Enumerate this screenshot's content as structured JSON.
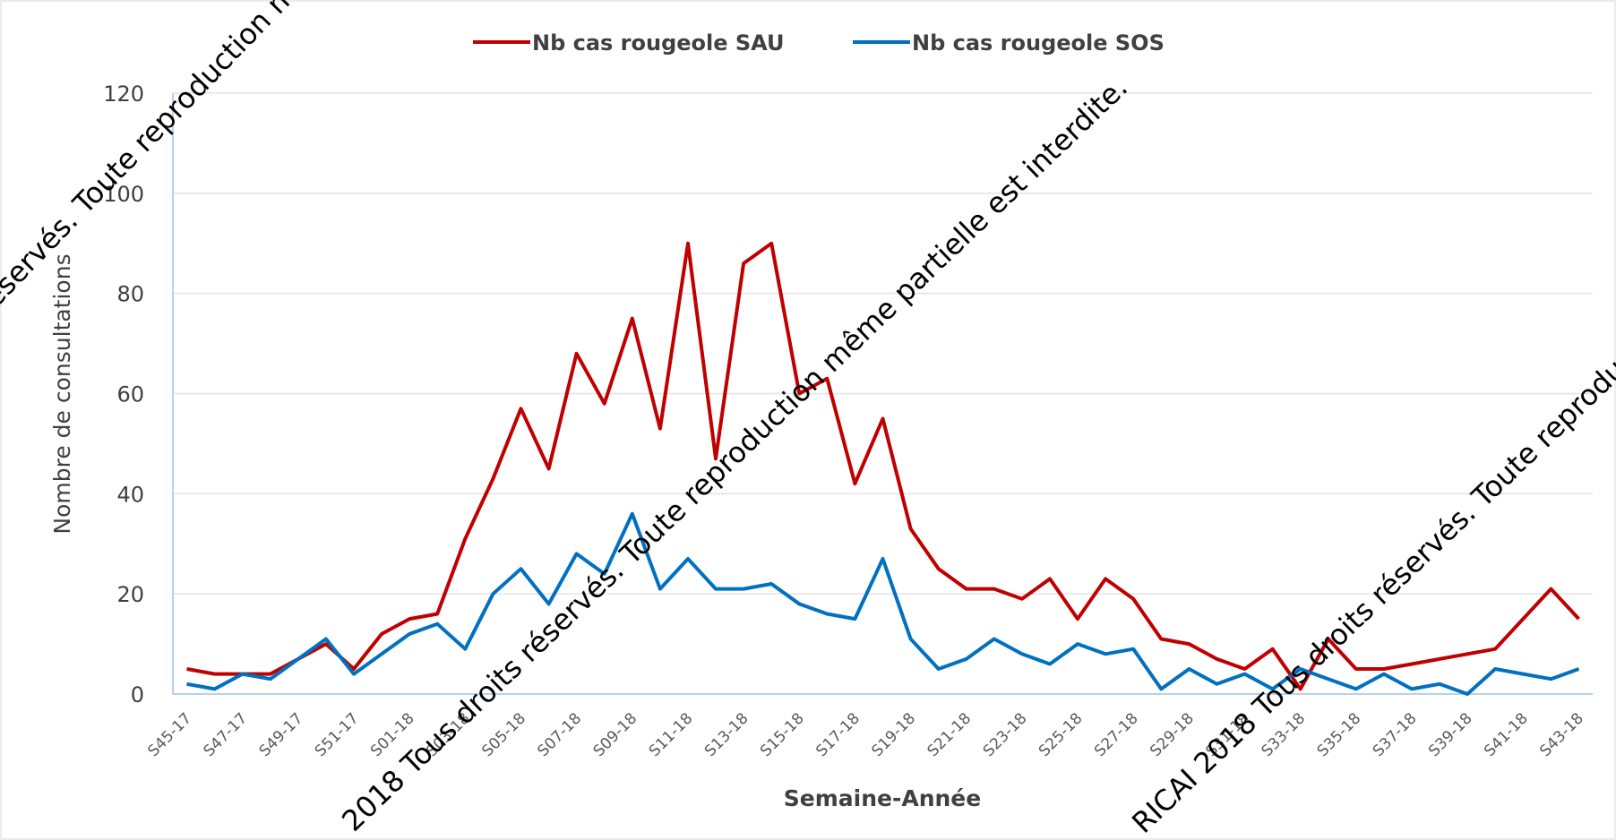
{
  "chart_data": {
    "type": "line",
    "y_label": "Nombre de consultations",
    "x_label": "Semaine-Année",
    "categories": [
      "S45-17",
      null,
      "S47-17",
      null,
      "S49-17",
      null,
      "S51-17",
      null,
      "S01-18",
      null,
      "S03-18",
      null,
      "S05-18",
      null,
      "S07-18",
      null,
      "S09-18",
      null,
      "S11-18",
      null,
      "S13-18",
      null,
      "S15-18",
      null,
      "S17-18",
      null,
      "S19-18",
      null,
      "S21-18",
      null,
      "S23-18",
      null,
      "S25-18",
      null,
      "S27-18",
      null,
      "S29-18",
      null,
      "S31-18",
      null,
      "S33-18",
      null,
      "S35-18",
      null,
      "S37-18",
      null,
      "S39-18",
      null,
      "S41-18",
      null,
      "S43-18"
    ],
    "series": [
      {
        "name": "Nb cas rougeole SAU",
        "color": "#c00000",
        "values": [
          5,
          4,
          4,
          4,
          7,
          10,
          5,
          12,
          15,
          16,
          31,
          43,
          57,
          45,
          68,
          58,
          75,
          53,
          90,
          47,
          86,
          90,
          60,
          63,
          42,
          55,
          33,
          25,
          21,
          21,
          19,
          23,
          15,
          23,
          19,
          11,
          10,
          7,
          5,
          9,
          1,
          11,
          5,
          5,
          6,
          7,
          8,
          9,
          15,
          21,
          15
        ]
      },
      {
        "name": "Nb cas rougeole SOS",
        "color": "#0070c0",
        "values": [
          2,
          1,
          4,
          3,
          7,
          11,
          4,
          8,
          12,
          14,
          9,
          20,
          25,
          18,
          28,
          24,
          36,
          21,
          27,
          21,
          21,
          22,
          18,
          16,
          15,
          27,
          11,
          5,
          7,
          11,
          8,
          6,
          10,
          8,
          9,
          1,
          5,
          2,
          4,
          1,
          5,
          3,
          1,
          4,
          1,
          2,
          0,
          5,
          4,
          3,
          5
        ]
      }
    ],
    "ylim": [
      0,
      120
    ],
    "yticks": [
      0,
      20,
      40,
      60,
      80,
      100,
      120
    ],
    "grid": true,
    "legend": "top",
    "watermarks": [
      "eservés. Toute reproduction m",
      "2018 Tous droits réservés. Toute reproduction même partielle est interdite.",
      "RICAI 2018 Tous droits réservés. Toute reproduc"
    ]
  }
}
